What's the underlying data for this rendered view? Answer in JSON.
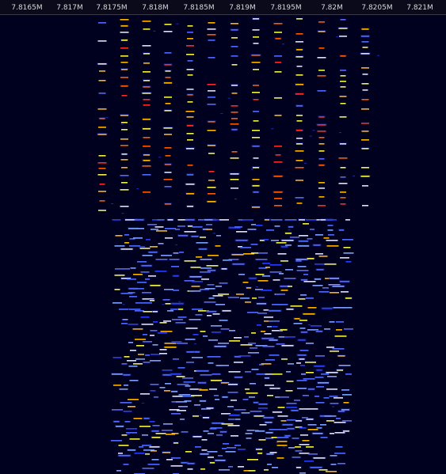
{
  "frequency_axis": {
    "ticks": [
      "7.8165M",
      "7.817M",
      "7.8175M",
      "7.818M",
      "7.8185M",
      "7.819M",
      "7.8195M",
      "7.82M",
      "7.8205M",
      "7.821M"
    ]
  },
  "waterfall": {
    "palette": [
      "#2a3cff",
      "#4f6bff",
      "#7fa0ff",
      "#e0e0ff",
      "#f5f24a",
      "#ffb400",
      "#ff5a00",
      "#ff2a2a"
    ],
    "background_color": "#00001f"
  }
}
